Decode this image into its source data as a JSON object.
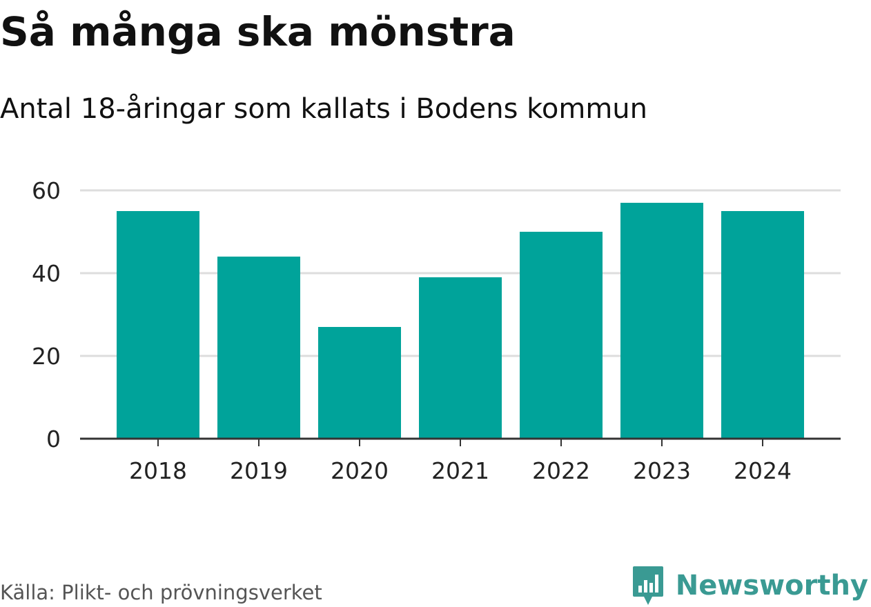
{
  "header": {
    "title": "Så många ska mönstra",
    "subtitle": "Antal 18-åringar som kallats i Bodens kommun"
  },
  "footer": {
    "source": "Källa: Plikt- och prövningsverket",
    "brand_name": "Newsworthy",
    "brand_icon": "bar-chart-speech-bubble-icon"
  },
  "colors": {
    "bar": "#00a39a",
    "grid": "#dddddd",
    "axis": "#333333",
    "brand": "#3a9a93",
    "text": "#111111",
    "muted": "#555555"
  },
  "chart_data": {
    "type": "bar",
    "categories": [
      "2018",
      "2019",
      "2020",
      "2021",
      "2022",
      "2023",
      "2024"
    ],
    "values": [
      55,
      44,
      27,
      39,
      50,
      57,
      55
    ],
    "ylim": [
      0,
      60
    ],
    "yticks": [
      0,
      20,
      40,
      60
    ],
    "grid": true,
    "legend": "none"
  }
}
